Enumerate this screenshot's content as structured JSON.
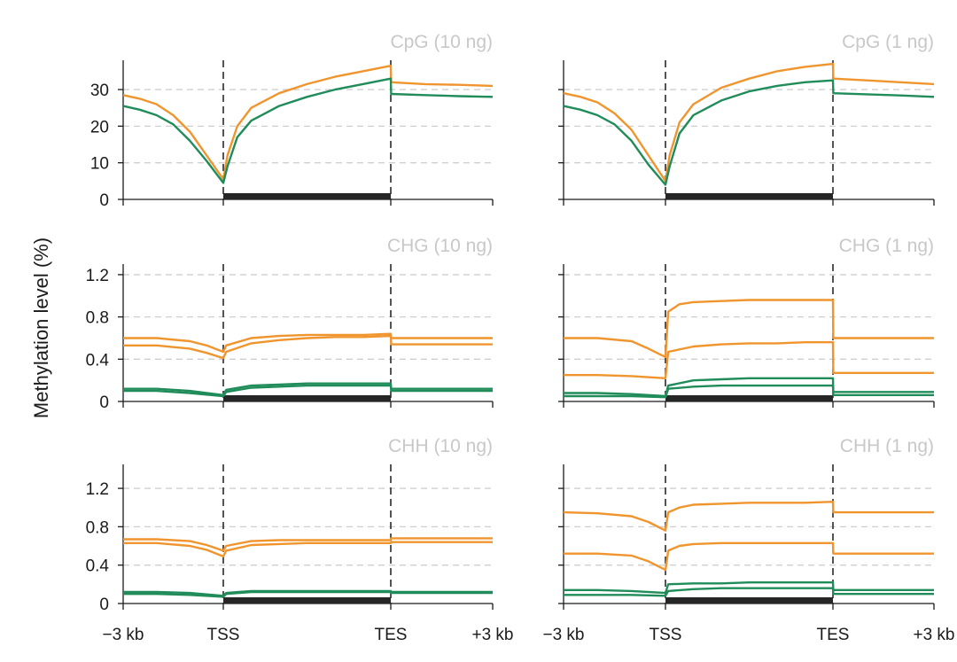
{
  "figure": {
    "ylabel": "Methylation level (%)",
    "xtick_labels": [
      "−3 kb",
      "TSS",
      "TES",
      "+3 kb"
    ],
    "colors": {
      "orange": "#f0952e",
      "green": "#1f8c5a",
      "gene_bar": "#262626",
      "grid": "#cfcfcf"
    }
  },
  "chart_data": [
    {
      "id": "cpg-10",
      "type": "line",
      "title": "CpG (10 ng)",
      "xlabel": "",
      "ylabel": "Methylation level (%)",
      "xlim": [
        -3,
        9
      ],
      "ylim": [
        0,
        38
      ],
      "yticks": [
        0,
        10,
        20,
        30
      ],
      "ytick_labels": [
        "0",
        "10",
        "20",
        "30"
      ],
      "grid": "horizontal dashed",
      "series": [
        {
          "name": "orange",
          "color": "#f0952e",
          "x": [
            -3,
            -2.5,
            -2,
            -1.5,
            -1,
            -0.5,
            0,
            0.15,
            0.5,
            1,
            2,
            3,
            4,
            5,
            6,
            6.01,
            7,
            8,
            9
          ],
          "values": [
            28.5,
            27.5,
            26,
            23,
            18.5,
            12,
            5.5,
            12,
            20,
            25,
            29,
            31.5,
            33.5,
            35,
            36.5,
            32,
            31.5,
            31.3,
            31
          ]
        },
        {
          "name": "green",
          "color": "#1f8c5a",
          "x": [
            -3,
            -2.5,
            -2,
            -1.5,
            -1,
            -0.5,
            0,
            0.15,
            0.5,
            1,
            2,
            3,
            4,
            5,
            6,
            6.01,
            7,
            8,
            9
          ],
          "values": [
            25.5,
            24.5,
            23,
            20.5,
            16,
            10.5,
            4.5,
            9,
            17,
            21.5,
            25.5,
            28,
            30,
            31.5,
            33,
            28.8,
            28.5,
            28.2,
            28
          ]
        }
      ]
    },
    {
      "id": "cpg-1",
      "type": "line",
      "title": "CpG (1 ng)",
      "xlabel": "",
      "ylabel": "Methylation level (%)",
      "xlim": [
        -3,
        9
      ],
      "ylim": [
        0,
        38
      ],
      "yticks": [
        0,
        10,
        20,
        30
      ],
      "ytick_labels": [
        "",
        "",
        "",
        ""
      ],
      "grid": "horizontal dashed",
      "series": [
        {
          "name": "orange",
          "color": "#f0952e",
          "x": [
            -3,
            -2.5,
            -2,
            -1.5,
            -1,
            -0.5,
            0,
            0.15,
            0.5,
            1,
            2,
            3,
            4,
            5,
            6,
            6.01,
            7,
            8,
            9
          ],
          "values": [
            29,
            28,
            26.5,
            23.5,
            19,
            12,
            5,
            12,
            21,
            26,
            30.5,
            33,
            35,
            36.2,
            37,
            33,
            32.5,
            32,
            31.5
          ]
        },
        {
          "name": "green",
          "color": "#1f8c5a",
          "x": [
            -3,
            -2.5,
            -2,
            -1.5,
            -1,
            -0.5,
            0,
            0.15,
            0.5,
            1,
            2,
            3,
            4,
            5,
            6,
            6.01,
            7,
            8,
            9
          ],
          "values": [
            25.5,
            24.5,
            23,
            20.5,
            16,
            9.5,
            4,
            9,
            18,
            23,
            27,
            29.5,
            31,
            32,
            32.5,
            29,
            28.7,
            28.4,
            28
          ]
        }
      ]
    },
    {
      "id": "chg-10",
      "type": "line",
      "title": "CHG (10 ng)",
      "xlabel": "",
      "ylabel": "Methylation level (%)",
      "xlim": [
        -3,
        9
      ],
      "ylim": [
        0,
        1.3
      ],
      "yticks": [
        0,
        0.4,
        0.8,
        1.2
      ],
      "ytick_labels": [
        "0",
        "0.4",
        "0.8",
        "1.2"
      ],
      "grid": "horizontal dashed",
      "series": [
        {
          "name": "orange-1",
          "color": "#f0952e",
          "x": [
            -3,
            -2,
            -1,
            -0.5,
            0,
            0.1,
            1,
            2,
            3,
            4,
            5,
            6,
            6.01,
            7,
            8,
            9
          ],
          "values": [
            0.6,
            0.6,
            0.57,
            0.53,
            0.47,
            0.53,
            0.6,
            0.62,
            0.63,
            0.63,
            0.63,
            0.64,
            0.6,
            0.6,
            0.6,
            0.6
          ]
        },
        {
          "name": "orange-2",
          "color": "#f0952e",
          "x": [
            -3,
            -2,
            -1,
            -0.5,
            0,
            0.1,
            1,
            2,
            3,
            4,
            5,
            6,
            6.01,
            7,
            8,
            9
          ],
          "values": [
            0.53,
            0.53,
            0.5,
            0.46,
            0.41,
            0.47,
            0.55,
            0.58,
            0.6,
            0.61,
            0.61,
            0.62,
            0.54,
            0.54,
            0.54,
            0.54
          ]
        },
        {
          "name": "green-1",
          "color": "#1f8c5a",
          "x": [
            -3,
            -2,
            -1,
            0,
            0.1,
            1,
            2,
            3,
            4,
            5,
            6,
            6.01,
            7,
            8,
            9
          ],
          "values": [
            0.12,
            0.12,
            0.1,
            0.06,
            0.11,
            0.15,
            0.16,
            0.17,
            0.17,
            0.17,
            0.17,
            0.12,
            0.12,
            0.12,
            0.12
          ]
        },
        {
          "name": "green-2",
          "color": "#1f8c5a",
          "x": [
            -3,
            -2,
            -1,
            0,
            0.1,
            1,
            2,
            3,
            4,
            5,
            6,
            6.01,
            7,
            8,
            9
          ],
          "values": [
            0.1,
            0.1,
            0.08,
            0.05,
            0.09,
            0.13,
            0.14,
            0.15,
            0.15,
            0.15,
            0.15,
            0.1,
            0.1,
            0.1,
            0.1
          ]
        }
      ]
    },
    {
      "id": "chg-1",
      "type": "line",
      "title": "CHG (1 ng)",
      "xlabel": "",
      "ylabel": "Methylation level (%)",
      "xlim": [
        -3,
        9
      ],
      "ylim": [
        0,
        1.3
      ],
      "yticks": [
        0,
        0.4,
        0.8,
        1.2
      ],
      "ytick_labels": [
        "",
        "",
        "",
        ""
      ],
      "grid": "horizontal dashed",
      "series": [
        {
          "name": "orange-1",
          "color": "#f0952e",
          "x": [
            -3,
            -2,
            -1,
            -0.5,
            0,
            0.1,
            0.5,
            1,
            2,
            3,
            4,
            5,
            6,
            6.01,
            7,
            8,
            9
          ],
          "values": [
            0.6,
            0.6,
            0.57,
            0.5,
            0.42,
            0.85,
            0.92,
            0.94,
            0.95,
            0.96,
            0.96,
            0.96,
            0.96,
            0.6,
            0.6,
            0.6,
            0.6
          ]
        },
        {
          "name": "orange-2",
          "color": "#f0952e",
          "x": [
            -3,
            -2,
            -1,
            0,
            0.1,
            1,
            2,
            3,
            4,
            5,
            6,
            6.01,
            7,
            8,
            9
          ],
          "values": [
            0.25,
            0.25,
            0.24,
            0.22,
            0.47,
            0.52,
            0.54,
            0.55,
            0.55,
            0.56,
            0.56,
            0.27,
            0.27,
            0.27,
            0.27
          ]
        },
        {
          "name": "green-1",
          "color": "#1f8c5a",
          "x": [
            -3,
            -2,
            -1,
            0,
            0.1,
            1,
            2,
            3,
            4,
            5,
            6,
            6.01,
            7,
            8,
            9
          ],
          "values": [
            0.08,
            0.08,
            0.07,
            0.05,
            0.15,
            0.2,
            0.21,
            0.22,
            0.22,
            0.22,
            0.22,
            0.09,
            0.09,
            0.09,
            0.09
          ]
        },
        {
          "name": "green-2",
          "color": "#1f8c5a",
          "x": [
            -3,
            -2,
            -1,
            0,
            0.1,
            1,
            2,
            3,
            4,
            5,
            6,
            6.01,
            7,
            8,
            9
          ],
          "values": [
            0.05,
            0.05,
            0.05,
            0.04,
            0.12,
            0.14,
            0.15,
            0.15,
            0.15,
            0.15,
            0.15,
            0.06,
            0.06,
            0.06,
            0.06
          ]
        }
      ]
    },
    {
      "id": "chh-10",
      "type": "line",
      "title": "CHH (10 ng)",
      "xlabel": "",
      "ylabel": "Methylation level (%)",
      "xlim": [
        -3,
        9
      ],
      "ylim": [
        0,
        1.45
      ],
      "yticks": [
        0,
        0.4,
        0.8,
        1.2
      ],
      "ytick_labels": [
        "0",
        "0.4",
        "0.8",
        "1.2"
      ],
      "grid": "horizontal dashed",
      "series": [
        {
          "name": "orange-1",
          "color": "#f0952e",
          "x": [
            -3,
            -2,
            -1,
            -0.5,
            0,
            0.1,
            1,
            2,
            3,
            4,
            5,
            6,
            6.01,
            7,
            8,
            9
          ],
          "values": [
            0.67,
            0.67,
            0.65,
            0.61,
            0.55,
            0.6,
            0.65,
            0.66,
            0.66,
            0.66,
            0.66,
            0.66,
            0.68,
            0.68,
            0.68,
            0.68
          ]
        },
        {
          "name": "orange-2",
          "color": "#f0952e",
          "x": [
            -3,
            -2,
            -1,
            -0.5,
            0,
            0.1,
            1,
            2,
            3,
            4,
            5,
            6,
            6.01,
            7,
            8,
            9
          ],
          "values": [
            0.63,
            0.63,
            0.6,
            0.56,
            0.49,
            0.55,
            0.61,
            0.62,
            0.63,
            0.63,
            0.63,
            0.63,
            0.64,
            0.64,
            0.64,
            0.64
          ]
        },
        {
          "name": "green-1",
          "color": "#1f8c5a",
          "x": [
            -3,
            -2,
            -1,
            0,
            0.1,
            1,
            2,
            3,
            4,
            5,
            6,
            6.01,
            7,
            8,
            9
          ],
          "values": [
            0.12,
            0.12,
            0.11,
            0.08,
            0.11,
            0.13,
            0.13,
            0.13,
            0.13,
            0.13,
            0.13,
            0.12,
            0.12,
            0.12,
            0.12
          ]
        },
        {
          "name": "green-2",
          "color": "#1f8c5a",
          "x": [
            -3,
            -2,
            -1,
            0,
            0.1,
            1,
            2,
            3,
            4,
            5,
            6,
            6.01,
            7,
            8,
            9
          ],
          "values": [
            0.1,
            0.1,
            0.09,
            0.07,
            0.1,
            0.12,
            0.12,
            0.12,
            0.12,
            0.12,
            0.12,
            0.11,
            0.11,
            0.11,
            0.11
          ]
        }
      ]
    },
    {
      "id": "chh-1",
      "type": "line",
      "title": "CHH (1 ng)",
      "xlabel": "",
      "ylabel": "Methylation level (%)",
      "xlim": [
        -3,
        9
      ],
      "ylim": [
        0,
        1.45
      ],
      "yticks": [
        0,
        0.4,
        0.8,
        1.2
      ],
      "ytick_labels": [
        "",
        "",
        "",
        ""
      ],
      "grid": "horizontal dashed",
      "series": [
        {
          "name": "orange-1",
          "color": "#f0952e",
          "x": [
            -3,
            -2,
            -1,
            -0.5,
            0,
            0.1,
            0.5,
            1,
            2,
            3,
            4,
            5,
            6,
            6.01,
            7,
            8,
            9
          ],
          "values": [
            0.95,
            0.94,
            0.91,
            0.85,
            0.76,
            0.95,
            1.0,
            1.03,
            1.04,
            1.05,
            1.05,
            1.05,
            1.06,
            0.95,
            0.95,
            0.95,
            0.95
          ]
        },
        {
          "name": "orange-2",
          "color": "#f0952e",
          "x": [
            -3,
            -2,
            -1,
            -0.5,
            0,
            0.1,
            0.5,
            1,
            2,
            3,
            4,
            5,
            6,
            6.01,
            7,
            8,
            9
          ],
          "values": [
            0.52,
            0.52,
            0.5,
            0.44,
            0.35,
            0.55,
            0.6,
            0.62,
            0.63,
            0.63,
            0.63,
            0.63,
            0.63,
            0.52,
            0.52,
            0.52,
            0.52
          ]
        },
        {
          "name": "green-1",
          "color": "#1f8c5a",
          "x": [
            -3,
            -2,
            -1,
            0,
            0.1,
            1,
            2,
            3,
            4,
            5,
            6,
            6.01,
            7,
            8,
            9
          ],
          "values": [
            0.14,
            0.14,
            0.13,
            0.11,
            0.2,
            0.21,
            0.21,
            0.22,
            0.22,
            0.22,
            0.22,
            0.14,
            0.14,
            0.14,
            0.14
          ]
        },
        {
          "name": "green-2",
          "color": "#1f8c5a",
          "x": [
            -3,
            -2,
            -1,
            0,
            0.1,
            1,
            2,
            3,
            4,
            5,
            6,
            6.01,
            7,
            8,
            9
          ],
          "values": [
            0.09,
            0.09,
            0.09,
            0.08,
            0.13,
            0.15,
            0.16,
            0.16,
            0.16,
            0.16,
            0.16,
            0.1,
            0.1,
            0.1,
            0.1
          ]
        }
      ]
    }
  ]
}
